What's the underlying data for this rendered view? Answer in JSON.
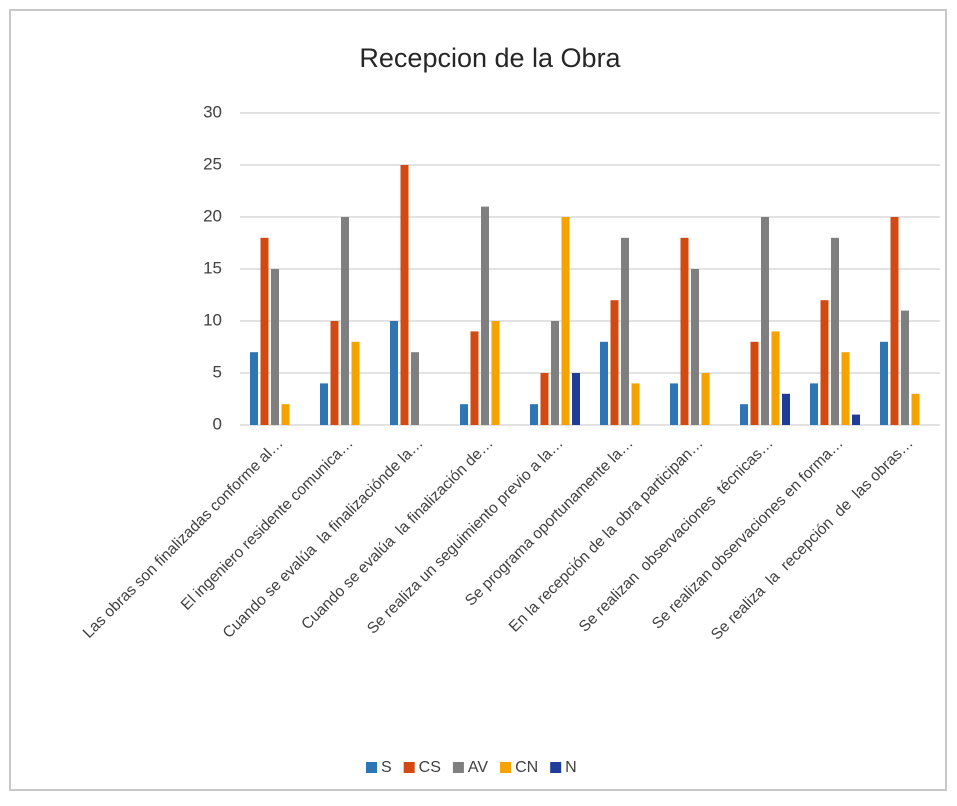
{
  "chart_data": {
    "type": "bar",
    "title": "Recepcion de la Obra",
    "categories": [
      "Las obras son finalizadas conforme al…",
      "El ingeniero residente comunica…",
      "Cuando se evalúa  la finalizaciónde la…",
      "Cuando se evalúa  la finalización de…",
      "Se realiza un seguimiento previo a la…",
      "Se programa oportunamente la…",
      "En la recepción de la obra participan…",
      "Se realizan  observaciones  técnicas…",
      "Se realizan observaciones en forma…",
      "Se realiza  la  recepción  de  las obras…"
    ],
    "series": [
      {
        "name": "S",
        "color": "#2e75b6",
        "values": [
          7,
          4,
          10,
          2,
          2,
          8,
          4,
          2,
          4,
          8
        ]
      },
      {
        "name": "CS",
        "color": "#d24a12",
        "values": [
          18,
          10,
          25,
          9,
          5,
          12,
          18,
          8,
          12,
          20
        ]
      },
      {
        "name": "AV",
        "color": "#7f7f7f",
        "values": [
          15,
          20,
          7,
          21,
          10,
          18,
          15,
          20,
          18,
          11
        ]
      },
      {
        "name": "CN",
        "color": "#f4a300",
        "values": [
          2,
          8,
          0,
          10,
          20,
          4,
          5,
          9,
          7,
          3
        ]
      },
      {
        "name": "N",
        "color": "#1f3c98",
        "values": [
          0,
          0,
          0,
          0,
          5,
          0,
          0,
          3,
          1,
          0
        ]
      }
    ],
    "ylim": [
      0,
      30
    ],
    "yticks": [
      0,
      5,
      10,
      15,
      20,
      25,
      30
    ],
    "grid": true,
    "legend": "bottom"
  }
}
